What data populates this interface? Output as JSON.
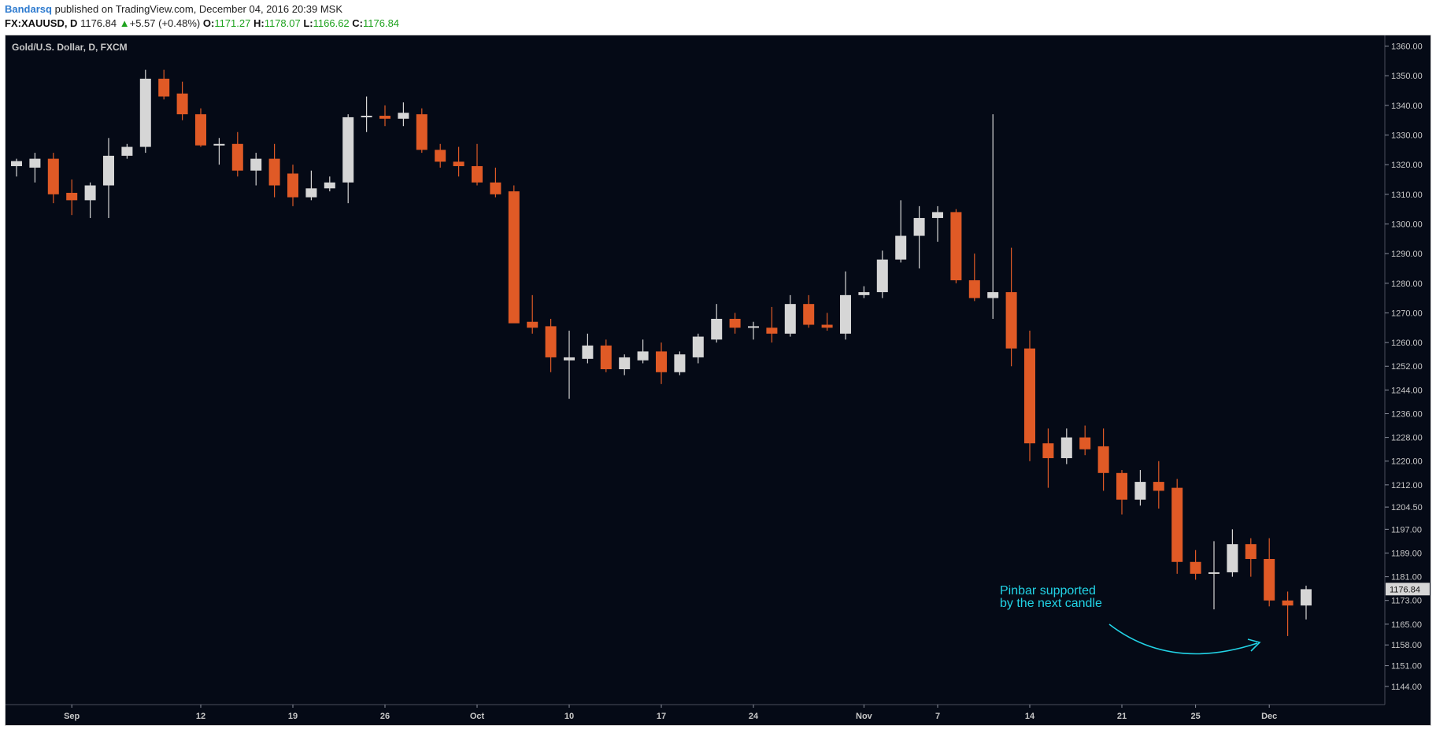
{
  "header": {
    "author": "Bandarsq",
    "published_text": "published on TradingView.com, December 04, 2016 20:39 MSK",
    "symbol": "FX:XAUUSD, D",
    "last_price": "1176.84",
    "change": "+5.57 (+0.48%)",
    "open_label": "O:",
    "open_value": "1171.27",
    "high_label": "H:",
    "high_value": "1178.07",
    "low_label": "L:",
    "low_value": "1166.62",
    "close_label": "C:",
    "close_value": "1176.84"
  },
  "colors": {
    "background": "#050a16",
    "up_candle": "#d6d6d6",
    "down_candle": "#e05a26",
    "axis_text": "#c8c8c8",
    "annotation": "#22d3e6",
    "price_label_bg": "#d6d6d6"
  },
  "chart_data": {
    "type": "candlestick",
    "title": "Gold/U.S. Dollar, D, FXCM",
    "y_ticks": [
      "1360.00",
      "1350.00",
      "1340.00",
      "1330.00",
      "1320.00",
      "1310.00",
      "1300.00",
      "1290.00",
      "1280.00",
      "1270.00",
      "1260.00",
      "1252.00",
      "1244.00",
      "1236.00",
      "1228.00",
      "1220.00",
      "1212.00",
      "1204.50",
      "1197.00",
      "1189.00",
      "1181.00",
      "1173.00",
      "1165.00",
      "1158.00",
      "1151.00",
      "1144.00"
    ],
    "ylim": [
      1140,
      1362
    ],
    "x_ticks": [
      {
        "label": "Sep",
        "index": 3
      },
      {
        "label": "12",
        "index": 10
      },
      {
        "label": "19",
        "index": 15
      },
      {
        "label": "26",
        "index": 20
      },
      {
        "label": "Oct",
        "index": 25
      },
      {
        "label": "10",
        "index": 30
      },
      {
        "label": "17",
        "index": 35
      },
      {
        "label": "24",
        "index": 40
      },
      {
        "label": "Nov",
        "index": 46
      },
      {
        "label": "7",
        "index": 50
      },
      {
        "label": "14",
        "index": 55
      },
      {
        "label": "21",
        "index": 60
      },
      {
        "label": "25",
        "index": 64
      },
      {
        "label": "Dec",
        "index": 68
      }
    ],
    "last_price_label": "1176.84",
    "annotation": {
      "lines": [
        "Pinbar supported",
        "by the next candle"
      ]
    },
    "candles": [
      {
        "o": 1319.5,
        "h": 1322,
        "l": 1316,
        "c": 1321.2
      },
      {
        "o": 1319,
        "h": 1324,
        "l": 1314,
        "c": 1322
      },
      {
        "o": 1322,
        "h": 1324,
        "l": 1307,
        "c": 1310
      },
      {
        "o": 1310.5,
        "h": 1315,
        "l": 1303,
        "c": 1308
      },
      {
        "o": 1308,
        "h": 1314,
        "l": 1302,
        "c": 1313
      },
      {
        "o": 1313,
        "h": 1329,
        "l": 1302,
        "c": 1323
      },
      {
        "o": 1323,
        "h": 1327,
        "l": 1322,
        "c": 1326
      },
      {
        "o": 1326,
        "h": 1352,
        "l": 1324,
        "c": 1349
      },
      {
        "o": 1349,
        "h": 1352,
        "l": 1342,
        "c": 1343
      },
      {
        "o": 1344,
        "h": 1348,
        "l": 1335,
        "c": 1337
      },
      {
        "o": 1337,
        "h": 1339,
        "l": 1326,
        "c": 1326.5
      },
      {
        "o": 1326.5,
        "h": 1329,
        "l": 1320,
        "c": 1327
      },
      {
        "o": 1327,
        "h": 1331,
        "l": 1316,
        "c": 1318
      },
      {
        "o": 1318,
        "h": 1324,
        "l": 1313,
        "c": 1322
      },
      {
        "o": 1322,
        "h": 1327,
        "l": 1309,
        "c": 1313
      },
      {
        "o": 1317,
        "h": 1320,
        "l": 1306,
        "c": 1309
      },
      {
        "o": 1309,
        "h": 1318,
        "l": 1308,
        "c": 1312
      },
      {
        "o": 1312,
        "h": 1316,
        "l": 1311,
        "c": 1314
      },
      {
        "o": 1314,
        "h": 1337,
        "l": 1307,
        "c": 1336
      },
      {
        "o": 1336,
        "h": 1343,
        "l": 1331,
        "c": 1336.5
      },
      {
        "o": 1336.5,
        "h": 1340,
        "l": 1333,
        "c": 1335.5
      },
      {
        "o": 1335.5,
        "h": 1341,
        "l": 1333,
        "c": 1337.5
      },
      {
        "o": 1337,
        "h": 1339,
        "l": 1324,
        "c": 1325
      },
      {
        "o": 1325,
        "h": 1327,
        "l": 1319,
        "c": 1321
      },
      {
        "o": 1321,
        "h": 1326,
        "l": 1316,
        "c": 1319.5
      },
      {
        "o": 1319.5,
        "h": 1327,
        "l": 1313,
        "c": 1314
      },
      {
        "o": 1314,
        "h": 1319,
        "l": 1309,
        "c": 1310
      },
      {
        "o": 1311,
        "h": 1313,
        "l": 1267,
        "c": 1266.5
      },
      {
        "o": 1267,
        "h": 1276,
        "l": 1263,
        "c": 1265
      },
      {
        "o": 1265.5,
        "h": 1268,
        "l": 1250,
        "c": 1255
      },
      {
        "o": 1254,
        "h": 1264,
        "l": 1241,
        "c": 1255
      },
      {
        "o": 1254.5,
        "h": 1263,
        "l": 1253,
        "c": 1259
      },
      {
        "o": 1259,
        "h": 1261,
        "l": 1250,
        "c": 1251
      },
      {
        "o": 1251,
        "h": 1256,
        "l": 1249,
        "c": 1255
      },
      {
        "o": 1254,
        "h": 1261,
        "l": 1253,
        "c": 1257
      },
      {
        "o": 1257,
        "h": 1260,
        "l": 1246,
        "c": 1250
      },
      {
        "o": 1250,
        "h": 1257,
        "l": 1249,
        "c": 1256
      },
      {
        "o": 1255,
        "h": 1263,
        "l": 1253,
        "c": 1262
      },
      {
        "o": 1261,
        "h": 1273,
        "l": 1260,
        "c": 1268
      },
      {
        "o": 1268,
        "h": 1270,
        "l": 1263,
        "c": 1265
      },
      {
        "o": 1265,
        "h": 1267,
        "l": 1261,
        "c": 1265.5
      },
      {
        "o": 1265,
        "h": 1272,
        "l": 1260,
        "c": 1263
      },
      {
        "o": 1263,
        "h": 1276,
        "l": 1262,
        "c": 1273
      },
      {
        "o": 1273,
        "h": 1276,
        "l": 1265,
        "c": 1266
      },
      {
        "o": 1266,
        "h": 1270,
        "l": 1264,
        "c": 1265
      },
      {
        "o": 1263,
        "h": 1284,
        "l": 1261,
        "c": 1276
      },
      {
        "o": 1276,
        "h": 1279,
        "l": 1275,
        "c": 1277
      },
      {
        "o": 1277,
        "h": 1291,
        "l": 1275,
        "c": 1288
      },
      {
        "o": 1288,
        "h": 1308,
        "l": 1287,
        "c": 1296
      },
      {
        "o": 1296,
        "h": 1306,
        "l": 1285,
        "c": 1302
      },
      {
        "o": 1302,
        "h": 1306,
        "l": 1294,
        "c": 1304
      },
      {
        "o": 1304,
        "h": 1305,
        "l": 1280,
        "c": 1281
      },
      {
        "o": 1281,
        "h": 1290,
        "l": 1274,
        "c": 1275
      },
      {
        "o": 1275,
        "h": 1337,
        "l": 1268,
        "c": 1277
      },
      {
        "o": 1277,
        "h": 1292,
        "l": 1252,
        "c": 1258
      },
      {
        "o": 1258,
        "h": 1264,
        "l": 1220,
        "c": 1226
      },
      {
        "o": 1226,
        "h": 1231,
        "l": 1211,
        "c": 1221
      },
      {
        "o": 1221,
        "h": 1231,
        "l": 1219,
        "c": 1228
      },
      {
        "o": 1228,
        "h": 1232,
        "l": 1222,
        "c": 1224
      },
      {
        "o": 1225,
        "h": 1231,
        "l": 1210,
        "c": 1216
      },
      {
        "o": 1216,
        "h": 1217,
        "l": 1202,
        "c": 1207
      },
      {
        "o": 1207,
        "h": 1217,
        "l": 1205,
        "c": 1213
      },
      {
        "o": 1213,
        "h": 1220,
        "l": 1204,
        "c": 1210
      },
      {
        "o": 1211,
        "h": 1214,
        "l": 1182,
        "c": 1186
      },
      {
        "o": 1186,
        "h": 1190,
        "l": 1180,
        "c": 1182
      },
      {
        "o": 1182,
        "h": 1193,
        "l": 1170,
        "c": 1182.5
      },
      {
        "o": 1182.5,
        "h": 1197,
        "l": 1181,
        "c": 1192
      },
      {
        "o": 1192,
        "h": 1194,
        "l": 1181,
        "c": 1187
      },
      {
        "o": 1187,
        "h": 1194,
        "l": 1171,
        "c": 1173
      },
      {
        "o": 1173,
        "h": 1176,
        "l": 1161,
        "c": 1171.3
      },
      {
        "o": 1171.3,
        "h": 1178,
        "l": 1166.6,
        "c": 1176.8
      }
    ]
  }
}
